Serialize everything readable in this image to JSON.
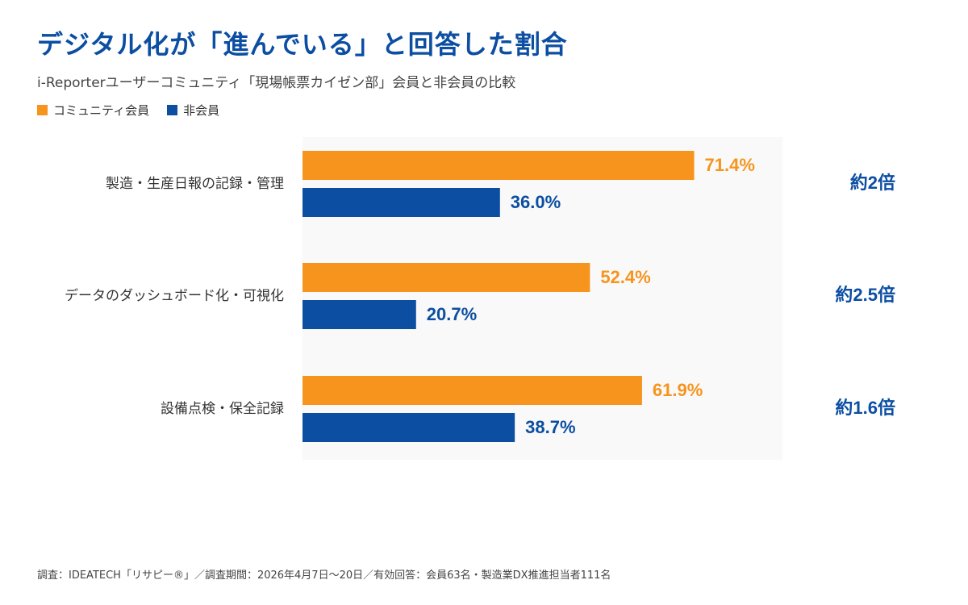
{
  "title": "デジタル化が「進んでいる」と回答した割合",
  "subtitle": "i-Reporterユーザーコミュニティ「現場帳票カイゼン部」会員と非会員の比較",
  "footer": "調査：IDEATECH「リサピー®」／調査期間：2026年4月7日〜20日／有効回答：会員63名・製造業DX推進担当者111名",
  "colors": {
    "member": "#f7941d",
    "nonmember": "#0b4ea2",
    "ratio": "#0b4ea2"
  },
  "chart_data": {
    "type": "bar",
    "orientation": "horizontal",
    "categories": [
      "製造・生産日報の記録・管理",
      "データのダッシュボード化・可視化",
      "設備点検・保全記録"
    ],
    "series": [
      {
        "name": "コミュニティ会員",
        "values": [
          71.4,
          52.4,
          61.9
        ],
        "labels": [
          "71.4%",
          "52.4%",
          "61.9%"
        ]
      },
      {
        "name": "非会員",
        "values": [
          36.0,
          20.7,
          38.7
        ],
        "labels": [
          "36.0%",
          "20.7%",
          "38.7%"
        ]
      }
    ],
    "annotations": [
      "約2倍",
      "約2.5倍",
      "約1.6倍"
    ],
    "xlim": [
      0,
      100
    ],
    "grid": false,
    "legend_position": "top-left"
  }
}
